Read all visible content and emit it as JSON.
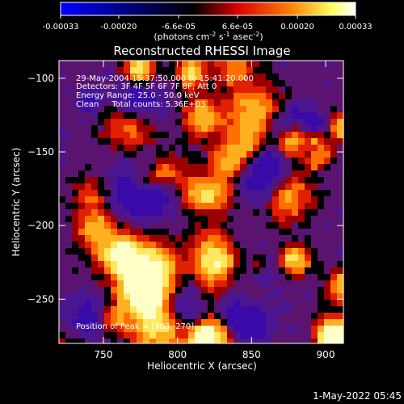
{
  "colorbar": {
    "ticks": [
      "-0.00033",
      "-0.00020",
      "-6.6e-05",
      "6.6e-05",
      "0.00020",
      "0.00033"
    ],
    "tick_values": [
      -0.00033,
      -0.0002,
      -6.6e-05,
      6.6e-05,
      0.0002,
      0.00033
    ],
    "range": [
      -0.00033,
      0.00033
    ],
    "unit_main": "(photons cm",
    "unit_exp1": "-2",
    "unit_mid": " s",
    "unit_exp2": "-1",
    "unit_end": " asec",
    "unit_exp3": "-2",
    "unit_close": ")",
    "colormap": [
      "#0000ff",
      "#000000",
      "#d80000",
      "#ff8000",
      "#ffff60",
      "#ffffff"
    ]
  },
  "chart_data": {
    "type": "heatmap",
    "title": "Reconstructed RHESSI Image",
    "xlabel": "Heliocentric X (arcsec)",
    "ylabel": "Heliocentric Y (arcsec)",
    "xlim": [
      720,
      912
    ],
    "ylim": [
      -280,
      -88
    ],
    "xticks": [
      750,
      800,
      850,
      900
    ],
    "yticks": [
      -100,
      -150,
      -200,
      -250
    ],
    "x_tick_labels": [
      "750",
      "800",
      "850",
      "900"
    ],
    "y_tick_labels": [
      "−100",
      "−150",
      "−200",
      "−250"
    ],
    "annotations": {
      "time": "29-May-2004 15:37:50.000 to 15:41:20.000",
      "detectors": "Detectors: 3F 4F 5F 6F 7F 8F, Att 0",
      "energy": "Energy Range: 25.0 - 50.0 keV",
      "method": "Clean     Total counts: 5.36E+03",
      "peak": "Position of Peak = [903,-270]"
    },
    "peak": {
      "x": 903,
      "y": -270
    }
  },
  "footer": {
    "timestamp": "1-May-2022 05:45"
  }
}
